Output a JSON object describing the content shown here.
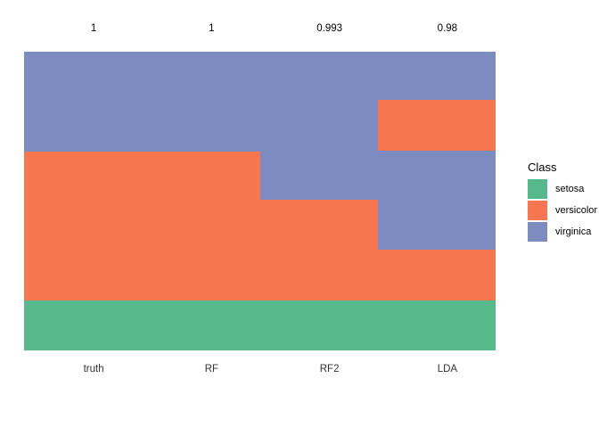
{
  "chart_data": {
    "type": "heatmap",
    "title": "",
    "xlabel": "",
    "ylabel": "",
    "grid": false,
    "legend_position": "right",
    "columns": [
      {
        "label": "truth",
        "score": "1",
        "segments": [
          {
            "class": "virginica",
            "fraction": 0.3333
          },
          {
            "class": "versicolor",
            "fraction": 0.5
          },
          {
            "class": "setosa",
            "fraction": 0.1667
          }
        ]
      },
      {
        "label": "RF",
        "score": "1",
        "segments": [
          {
            "class": "virginica",
            "fraction": 0.3333
          },
          {
            "class": "versicolor",
            "fraction": 0.5
          },
          {
            "class": "setosa",
            "fraction": 0.1667
          }
        ]
      },
      {
        "label": "RF2",
        "score": "0.993",
        "segments": [
          {
            "class": "virginica",
            "fraction": 0.4955
          },
          {
            "class": "versicolor",
            "fraction": 0.3378
          },
          {
            "class": "setosa",
            "fraction": 0.1667
          }
        ]
      },
      {
        "label": "LDA",
        "score": "0.98",
        "segments": [
          {
            "class": "virginica",
            "fraction": 0.1612
          },
          {
            "class": "versicolor",
            "fraction": 0.1702
          },
          {
            "class": "virginica",
            "fraction": 0.3313
          },
          {
            "class": "versicolor",
            "fraction": 0.1702
          },
          {
            "class": "setosa",
            "fraction": 0.1671
          }
        ]
      }
    ],
    "class_colors": {
      "setosa": "#55B98C",
      "versicolor": "#F6764F",
      "virginica": "#7D8CC0"
    }
  },
  "legend": {
    "title": "Class",
    "items": [
      {
        "label": "setosa",
        "color": "#55B98C"
      },
      {
        "label": "versicolor",
        "color": "#F6764F"
      },
      {
        "label": "virginica",
        "color": "#7D8CC0"
      }
    ]
  }
}
